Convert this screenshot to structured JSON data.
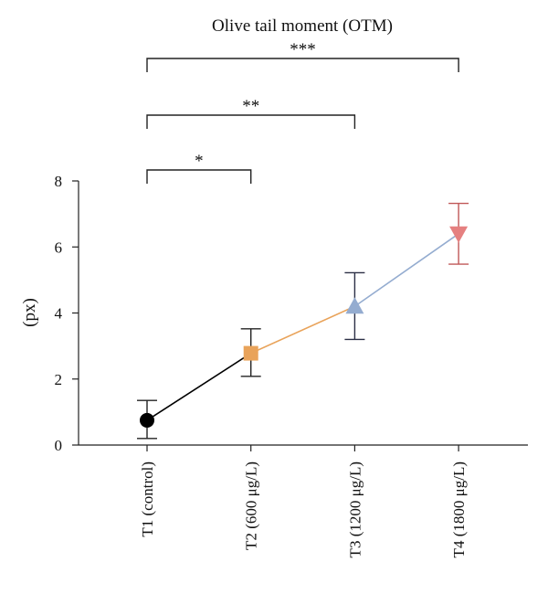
{
  "chart_data": {
    "type": "line",
    "title": "Olive tail moment (OTM)",
    "ylabel": "(px)",
    "xlabel": "",
    "categories": [
      "T1 (control)",
      "T2 (600 μg/L)",
      "T3 (1200 μg/L)",
      "T4 (1800 μg/L)"
    ],
    "ylim": [
      0,
      8
    ],
    "yticks": [
      0,
      2,
      4,
      6,
      8
    ],
    "points": [
      {
        "category": "T1 (control)",
        "mean": 0.75,
        "err_low": 0.2,
        "err_high": 1.35,
        "marker": "circle",
        "color": "#000000"
      },
      {
        "category": "T2 (600 μg/L)",
        "mean": 2.78,
        "err_low": 2.08,
        "err_high": 3.52,
        "marker": "square",
        "color": "#e9a35a"
      },
      {
        "category": "T3 (1200 μg/L)",
        "mean": 4.2,
        "err_low": 3.2,
        "err_high": 5.22,
        "marker": "triangle-up",
        "color": "#94acd0"
      },
      {
        "category": "T4 (1800 μg/L)",
        "mean": 6.4,
        "err_low": 5.48,
        "err_high": 7.32,
        "marker": "triangle-down",
        "color": "#e58080"
      }
    ],
    "segment_colors": [
      "#000000",
      "#e9a35a",
      "#94acd0"
    ],
    "errorbar_colors": [
      "#222222",
      "#222222",
      "#2b2f45",
      "#c05858"
    ],
    "significance": [
      {
        "from": 0,
        "to": 1,
        "label": "*"
      },
      {
        "from": 0,
        "to": 2,
        "label": "**"
      },
      {
        "from": 0,
        "to": 3,
        "label": "***"
      }
    ],
    "grid": false,
    "legend": "none"
  }
}
